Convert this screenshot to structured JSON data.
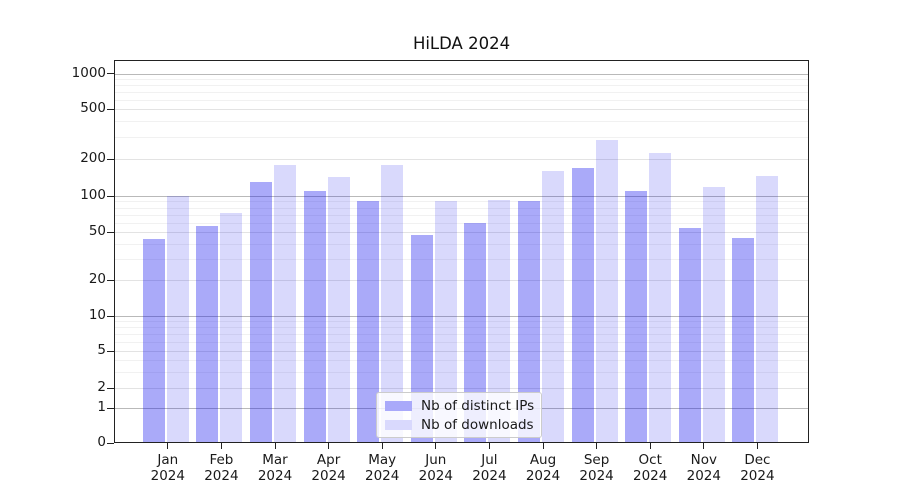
{
  "title": "HiLDA 2024",
  "chart_data": {
    "type": "bar",
    "title": "HiLDA 2024",
    "categories": [
      "Jan 2024",
      "Feb 2024",
      "Mar 2024",
      "Apr 2024",
      "May 2024",
      "Jun 2024",
      "Jul 2024",
      "Aug 2024",
      "Sep 2024",
      "Oct 2024",
      "Nov 2024",
      "Dec 2024"
    ],
    "series": [
      {
        "name": "Nb of distinct IPs",
        "values": [
          44,
          56,
          130,
          109,
          90,
          47,
          60,
          90,
          168,
          109,
          54,
          45
        ]
      },
      {
        "name": "Nb of downloads",
        "values": [
          100,
          72,
          178,
          142,
          180,
          90,
          92,
          159,
          285,
          222,
          118,
          145
        ]
      }
    ],
    "xlabel": "",
    "ylabel": "",
    "yscale": "asinh (symlog-like, shows 0)",
    "ylim": [
      0,
      1250
    ],
    "yticks": [
      0,
      1,
      2,
      5,
      10,
      20,
      50,
      100,
      200,
      500,
      1000
    ],
    "yticks_minor": [
      3,
      4,
      6,
      7,
      8,
      9,
      30,
      40,
      60,
      70,
      80,
      90,
      300,
      400,
      600,
      700,
      800,
      900
    ],
    "grid": "both",
    "legend_position": "inside lower-center"
  },
  "axes": {
    "y_ticks": [
      {
        "value": 1000,
        "label": "1000"
      },
      {
        "value": 500,
        "label": "500"
      },
      {
        "value": 200,
        "label": "200"
      },
      {
        "value": 100,
        "label": "100"
      },
      {
        "value": 50,
        "label": "50"
      },
      {
        "value": 20,
        "label": "20"
      },
      {
        "value": 10,
        "label": "10"
      },
      {
        "value": 5,
        "label": "5"
      },
      {
        "value": 2,
        "label": "2"
      },
      {
        "value": 1,
        "label": "1"
      },
      {
        "value": 0,
        "label": "0"
      }
    ],
    "x_ticks": [
      {
        "month": "Jan",
        "year": "2024"
      },
      {
        "month": "Feb",
        "year": "2024"
      },
      {
        "month": "Mar",
        "year": "2024"
      },
      {
        "month": "Apr",
        "year": "2024"
      },
      {
        "month": "May",
        "year": "2024"
      },
      {
        "month": "Jun",
        "year": "2024"
      },
      {
        "month": "Jul",
        "year": "2024"
      },
      {
        "month": "Aug",
        "year": "2024"
      },
      {
        "month": "Sep",
        "year": "2024"
      },
      {
        "month": "Oct",
        "year": "2024"
      },
      {
        "month": "Nov",
        "year": "2024"
      },
      {
        "month": "Dec",
        "year": "2024"
      }
    ]
  },
  "legend": {
    "items": [
      {
        "label": "Nb of distinct IPs",
        "swatch_color": "#a9a9fa"
      },
      {
        "label": "Nb of downloads",
        "swatch_color": "#d9d9fd"
      }
    ]
  },
  "colors": {
    "bar_distinct_ips": "rgba(8,8,238,0.345)",
    "bar_downloads": "rgba(8,8,238,0.152)",
    "grid_major": "#b9b9b9",
    "grid_sub": "#e3e3e3",
    "grid_minor": "#f1f1f1",
    "spine": "#222222",
    "text": "#1a1a1a"
  }
}
